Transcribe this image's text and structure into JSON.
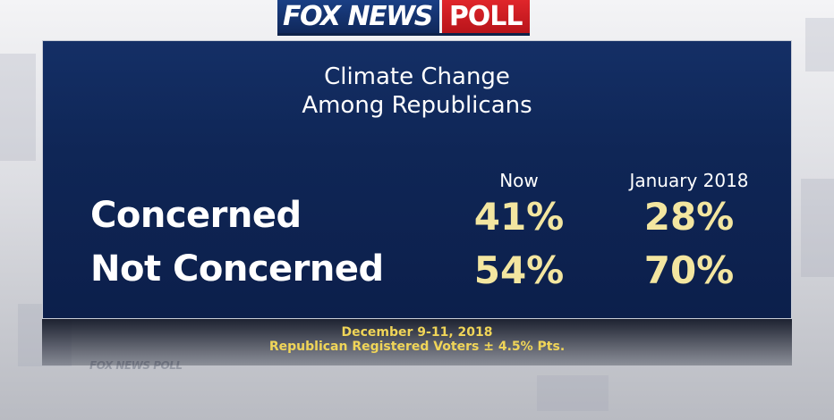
{
  "logo": {
    "fox_news": "FOX NEWS",
    "poll": "POLL"
  },
  "background": {
    "ghost_logo": "FOX NEWS POLL"
  },
  "chart_data": {
    "type": "table",
    "title": "Climate Change\nAmong Republicans",
    "title_lines": [
      "Climate Change",
      "Among Republicans"
    ],
    "columns": [
      "Now",
      "January 2018"
    ],
    "rows": [
      {
        "label": "Concerned",
        "values": [
          "41%",
          "28%"
        ]
      },
      {
        "label": "Not Concerned",
        "values": [
          "54%",
          "70%"
        ]
      }
    ],
    "values_numeric": [
      [
        41,
        28
      ],
      [
        54,
        70
      ]
    ]
  },
  "footer": {
    "date": "December 9-11, 2018",
    "sample": "Republican Registered Voters ± 4.5% Pts."
  },
  "colors": {
    "panel": "#0f2656",
    "value_text": "#f3e6a0",
    "footer_text": "#f0d558",
    "logo_blue": "#1a3f85",
    "logo_red": "#d01f25"
  }
}
